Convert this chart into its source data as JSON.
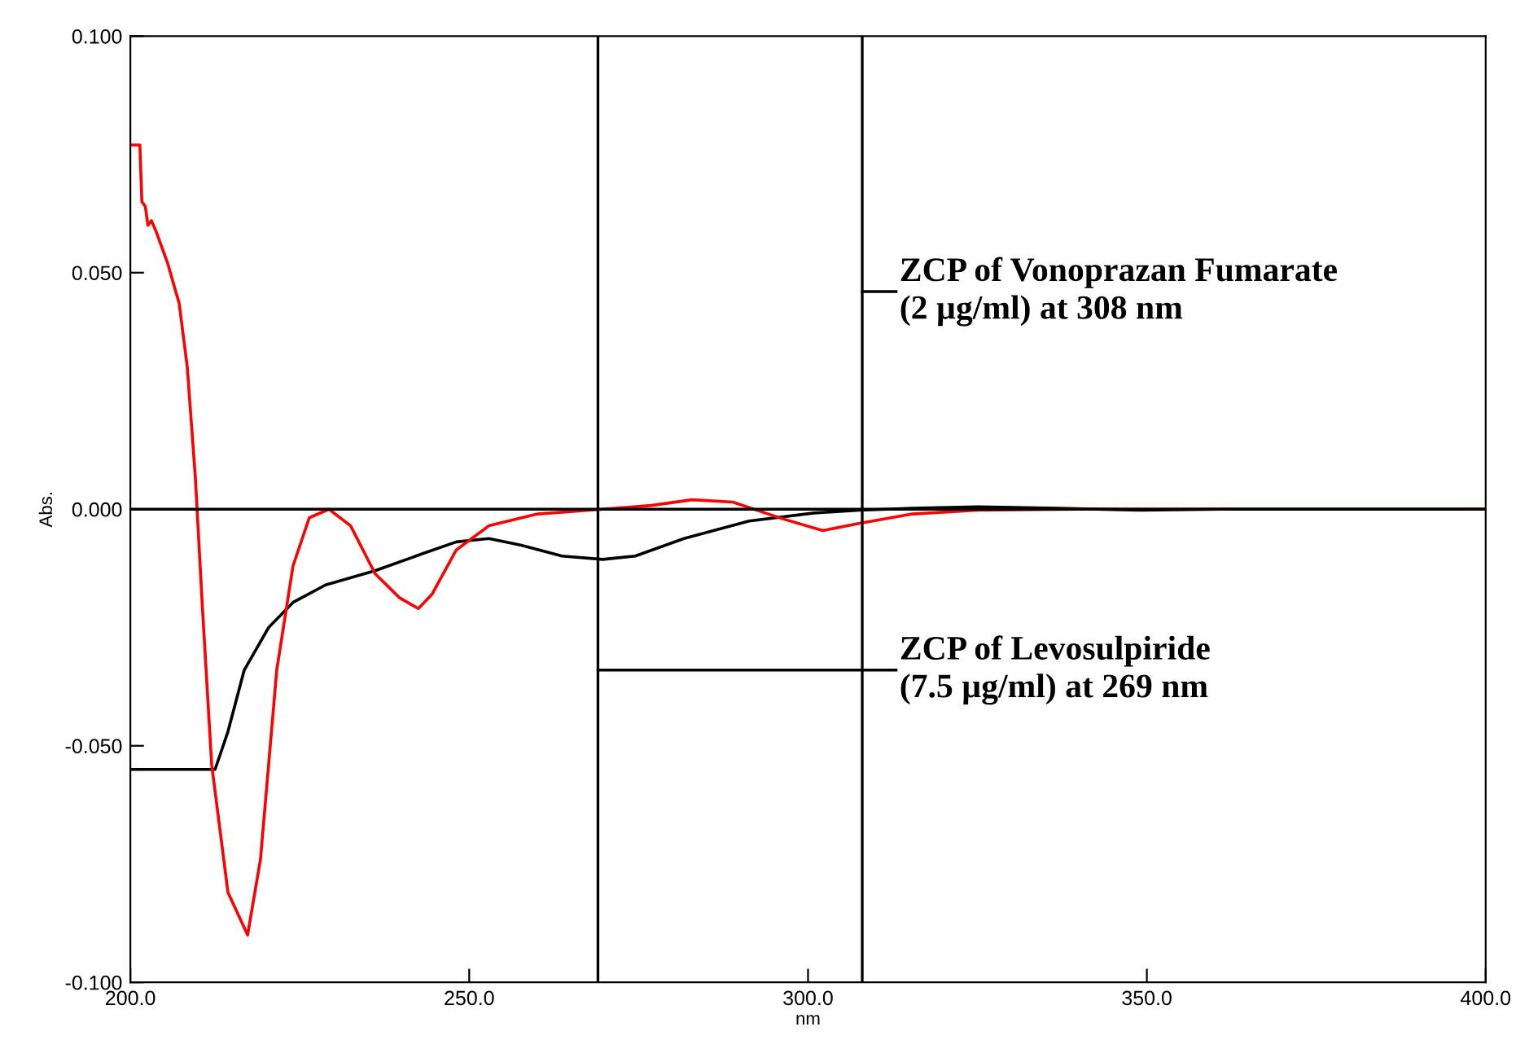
{
  "chart_data": {
    "type": "line",
    "xlabel": "nm",
    "ylabel": "Abs.",
    "xlim": [
      200,
      400
    ],
    "ylim": [
      -0.1,
      0.1
    ],
    "xticks": [
      {
        "value": 200,
        "label": "200.0"
      },
      {
        "value": 250,
        "label": "250.0"
      },
      {
        "value": 300,
        "label": "300.0"
      },
      {
        "value": 350,
        "label": "350.0"
      },
      {
        "value": 400,
        "label": "400.0"
      }
    ],
    "yticks": [
      {
        "value": -0.1,
        "label": "-0.100"
      },
      {
        "value": -0.05,
        "label": "-0.050"
      },
      {
        "value": 0,
        "label": "0.000"
      },
      {
        "value": 0.05,
        "label": "0.050"
      },
      {
        "value": 0.1,
        "label": "0.100"
      }
    ],
    "grid": false,
    "marker": "none",
    "line_style": "solid",
    "series": [
      {
        "color": "#000000",
        "x": [
          200,
          212.5,
          214.4,
          216.8,
          220.4,
          224,
          228.8,
          236.1,
          243.3,
          248.1,
          252.9,
          257.7,
          263.7,
          269.7,
          274.5,
          281.7,
          291.3,
          300.9,
          307.5,
          315.4,
          325,
          337,
          349,
          361,
          400
        ],
        "values": [
          -0.055,
          -0.055,
          -0.047,
          -0.034,
          -0.025,
          -0.0197,
          -0.016,
          -0.013,
          -0.0093,
          -0.0069,
          -0.0062,
          -0.0076,
          -0.0099,
          -0.0106,
          -0.0099,
          -0.0062,
          -0.0025,
          -0.0008,
          -0.0002,
          0.0002,
          0.0005,
          0.0002,
          -0.0002,
          0,
          0
        ]
      },
      {
        "color": "#ff0000",
        "x": [
          200,
          201.4,
          201.7,
          202.2,
          202.6,
          203.1,
          203.8,
          205.5,
          207.2,
          208.4,
          209.6,
          210.6,
          212,
          214.4,
          217.3,
          219.2,
          221.6,
          224,
          226.4,
          229.3,
          232.5,
          236.1,
          239.7,
          242.5,
          244.5,
          248.1,
          252.9,
          260.1,
          269.7,
          276.9,
          282.9,
          288.9,
          296.2,
          302.2,
          307.5,
          315.4,
          325,
          340,
          400
        ],
        "values": [
          0.077,
          0.077,
          0.065,
          0.064,
          0.06,
          0.061,
          0.0587,
          0.052,
          0.0435,
          0.03,
          0.0065,
          -0.02,
          -0.054,
          -0.081,
          -0.09,
          -0.074,
          -0.034,
          -0.012,
          -0.0018,
          0,
          -0.0035,
          -0.0136,
          -0.0187,
          -0.021,
          -0.018,
          -0.0086,
          -0.0035,
          -0.001,
          0,
          0.0008,
          0.002,
          0.0015,
          -0.002,
          -0.0045,
          -0.003,
          -0.001,
          -0.0002,
          0,
          0
        ]
      }
    ],
    "ref_lines": [
      {
        "axis": "y",
        "value": 0,
        "color": "#000000"
      },
      {
        "axis": "x",
        "value": 269,
        "color": "#000000",
        "label": "ZCP of Levosulpiride\n(7.5 µg/ml) at 269 nm"
      },
      {
        "axis": "x",
        "value": 308,
        "color": "#000000",
        "label": "ZCP of Vonoprazan Fumarate\n(2 µg/ml) at 308 nm"
      }
    ]
  }
}
